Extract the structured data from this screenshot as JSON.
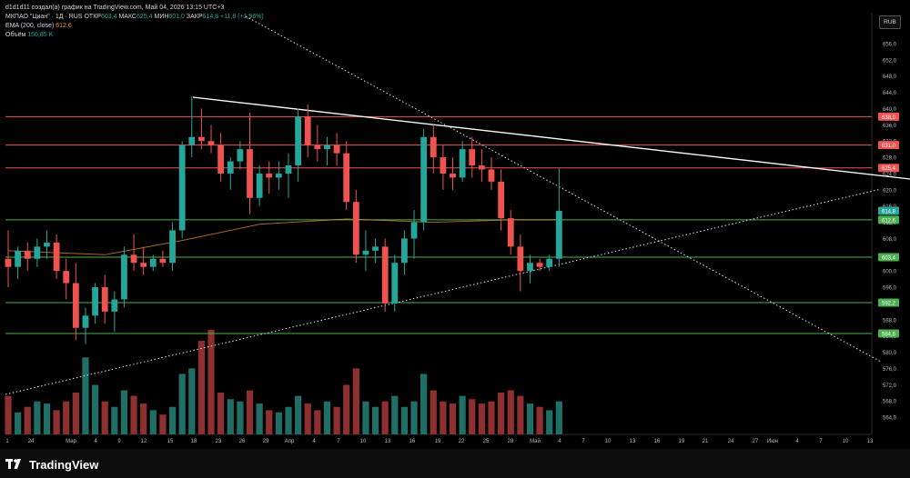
{
  "header": {
    "creator_line": "d1d1d11 создал(а) график на TradingView.com, Май 04, 2026 13:15 UTC+3",
    "ticker": "МКПАО \"Циан\" · 1Д · RUS",
    "open_label": "ОТКР",
    "open_value": "603,4",
    "high_label": "МАКС",
    "high_value": "625,4",
    "low_label": "МИН",
    "low_value": "601,0",
    "close_label": "ЗАКР",
    "close_value": "614,8",
    "change": "+11,8 (+1,96%)",
    "ema_label": "EMA (200, close)",
    "ema_value": "612,6",
    "volume_label": "Объём",
    "volume_value": "156,85 K"
  },
  "currency_button": "RUB",
  "brand": "TradingView",
  "colors": {
    "up": "#26a69a",
    "down": "#ef5350",
    "vol_up": "#1f6f67",
    "vol_down": "#8e2f30",
    "ema": "#f0932b",
    "red_level": "#ef5350",
    "green_level": "#4caf50",
    "trendline": "#ffffff"
  },
  "chart_data": {
    "type": "candlestick",
    "y_axis_ticks": [
      "656,0",
      "652,0",
      "648,0",
      "644,0",
      "640,0",
      "636,0",
      "632,0",
      "628,0",
      "624,0",
      "620,0",
      "616,0",
      "612,0",
      "608,0",
      "604,0",
      "600,0",
      "596,0",
      "592,0",
      "588,0",
      "584,0",
      "580,0",
      "576,0",
      "572,0",
      "568,0",
      "564,0"
    ],
    "x_axis_ticks": [
      "1",
      "24",
      "Мар",
      "4",
      "9",
      "12",
      "15",
      "18",
      "23",
      "26",
      "29",
      "Апр",
      "4",
      "7",
      "10",
      "13",
      "16",
      "19",
      "22",
      "25",
      "28",
      "Май",
      "4",
      "7",
      "10",
      "13",
      "16",
      "19",
      "21",
      "24",
      "27",
      "Июн",
      "4",
      "7",
      "10",
      "13"
    ],
    "price_labels": [
      {
        "text": "638,0",
        "value": 638.0,
        "kind": "red"
      },
      {
        "text": "631,0",
        "value": 631.0,
        "kind": "red"
      },
      {
        "text": "625,4",
        "value": 625.4,
        "kind": "red"
      },
      {
        "text": "614,8",
        "value": 614.8,
        "kind": "up"
      },
      {
        "text": "612,6",
        "value": 612.6,
        "kind": "green"
      },
      {
        "text": "603,4",
        "value": 603.4,
        "kind": "green"
      },
      {
        "text": "592,2",
        "value": 592.2,
        "kind": "green"
      },
      {
        "text": "584,6",
        "value": 584.6,
        "kind": "green"
      }
    ],
    "horizontal_levels": [
      {
        "value": 638.0,
        "kind": "red"
      },
      {
        "value": 631.0,
        "kind": "red"
      },
      {
        "value": 625.4,
        "kind": "red"
      },
      {
        "value": 612.6,
        "kind": "green"
      },
      {
        "value": 603.4,
        "kind": "green"
      },
      {
        "value": 592.2,
        "kind": "green"
      },
      {
        "value": 584.6,
        "kind": "green"
      }
    ],
    "candles": [
      {
        "o": 603,
        "h": 610,
        "l": 596,
        "c": 601
      },
      {
        "o": 601,
        "h": 606,
        "l": 598,
        "c": 605
      },
      {
        "o": 605,
        "h": 607,
        "l": 600,
        "c": 603
      },
      {
        "o": 603,
        "h": 608,
        "l": 601,
        "c": 606
      },
      {
        "o": 606,
        "h": 610,
        "l": 603,
        "c": 607
      },
      {
        "o": 607,
        "h": 609,
        "l": 598,
        "c": 600
      },
      {
        "o": 600,
        "h": 603,
        "l": 593,
        "c": 597
      },
      {
        "o": 597,
        "h": 602,
        "l": 583,
        "c": 586
      },
      {
        "o": 586,
        "h": 591,
        "l": 582,
        "c": 589
      },
      {
        "o": 589,
        "h": 597,
        "l": 587,
        "c": 596
      },
      {
        "o": 596,
        "h": 599,
        "l": 587,
        "c": 590
      },
      {
        "o": 590,
        "h": 595,
        "l": 585,
        "c": 593
      },
      {
        "o": 593,
        "h": 606,
        "l": 591,
        "c": 604
      },
      {
        "o": 604,
        "h": 609,
        "l": 600,
        "c": 602
      },
      {
        "o": 602,
        "h": 606,
        "l": 599,
        "c": 601
      },
      {
        "o": 601,
        "h": 604,
        "l": 600,
        "c": 603
      },
      {
        "o": 603,
        "h": 605,
        "l": 601,
        "c": 602
      },
      {
        "o": 602,
        "h": 612,
        "l": 600,
        "c": 610
      },
      {
        "o": 610,
        "h": 632,
        "l": 608,
        "c": 631
      },
      {
        "o": 631,
        "h": 643,
        "l": 628,
        "c": 633
      },
      {
        "o": 633,
        "h": 640,
        "l": 630,
        "c": 632
      },
      {
        "o": 632,
        "h": 636,
        "l": 629,
        "c": 631
      },
      {
        "o": 631,
        "h": 634,
        "l": 622,
        "c": 624
      },
      {
        "o": 624,
        "h": 628,
        "l": 620,
        "c": 627
      },
      {
        "o": 627,
        "h": 632,
        "l": 625,
        "c": 630
      },
      {
        "o": 630,
        "h": 639,
        "l": 614,
        "c": 618
      },
      {
        "o": 618,
        "h": 626,
        "l": 616,
        "c": 624
      },
      {
        "o": 624,
        "h": 627,
        "l": 619,
        "c": 623
      },
      {
        "o": 623,
        "h": 627,
        "l": 620,
        "c": 624
      },
      {
        "o": 624,
        "h": 629,
        "l": 618,
        "c": 626
      },
      {
        "o": 626,
        "h": 640,
        "l": 622,
        "c": 638
      },
      {
        "o": 638,
        "h": 641,
        "l": 628,
        "c": 631
      },
      {
        "o": 631,
        "h": 636,
        "l": 627,
        "c": 630
      },
      {
        "o": 630,
        "h": 633,
        "l": 626,
        "c": 631
      },
      {
        "o": 631,
        "h": 634,
        "l": 626,
        "c": 629
      },
      {
        "o": 629,
        "h": 632,
        "l": 615,
        "c": 617
      },
      {
        "o": 617,
        "h": 620,
        "l": 602,
        "c": 604
      },
      {
        "o": 604,
        "h": 610,
        "l": 600,
        "c": 605
      },
      {
        "o": 605,
        "h": 608,
        "l": 602,
        "c": 606
      },
      {
        "o": 606,
        "h": 608,
        "l": 590,
        "c": 592
      },
      {
        "o": 592,
        "h": 604,
        "l": 590,
        "c": 602
      },
      {
        "o": 602,
        "h": 610,
        "l": 599,
        "c": 608
      },
      {
        "o": 608,
        "h": 615,
        "l": 603,
        "c": 612
      },
      {
        "o": 612,
        "h": 635,
        "l": 610,
        "c": 633
      },
      {
        "o": 633,
        "h": 636,
        "l": 624,
        "c": 628
      },
      {
        "o": 628,
        "h": 631,
        "l": 620,
        "c": 624
      },
      {
        "o": 624,
        "h": 628,
        "l": 620,
        "c": 623
      },
      {
        "o": 623,
        "h": 632,
        "l": 622,
        "c": 630
      },
      {
        "o": 630,
        "h": 633,
        "l": 623,
        "c": 626
      },
      {
        "o": 626,
        "h": 630,
        "l": 622,
        "c": 625
      },
      {
        "o": 625,
        "h": 628,
        "l": 620,
        "c": 622
      },
      {
        "o": 622,
        "h": 625,
        "l": 610,
        "c": 613
      },
      {
        "o": 613,
        "h": 615,
        "l": 604,
        "c": 606
      },
      {
        "o": 606,
        "h": 609,
        "l": 595,
        "c": 600
      },
      {
        "o": 600,
        "h": 604,
        "l": 597,
        "c": 602
      },
      {
        "o": 602,
        "h": 603,
        "l": 600,
        "c": 601
      },
      {
        "o": 601,
        "h": 604,
        "l": 600,
        "c": 603
      },
      {
        "o": 603,
        "h": 625.4,
        "l": 601,
        "c": 614.8
      }
    ],
    "volumes": [
      35,
      20,
      25,
      30,
      28,
      22,
      30,
      38,
      70,
      45,
      30,
      25,
      40,
      35,
      28,
      22,
      18,
      25,
      55,
      60,
      85,
      95,
      38,
      32,
      30,
      40,
      28,
      22,
      20,
      25,
      35,
      28,
      22,
      30,
      25,
      45,
      60,
      30,
      25,
      30,
      35,
      25,
      30,
      55,
      40,
      30,
      28,
      35,
      32,
      28,
      30,
      38,
      40,
      35,
      28,
      25,
      22,
      30
    ],
    "ema": [
      {
        "i": 0,
        "v": 605.0
      },
      {
        "i": 10,
        "v": 604.0
      },
      {
        "i": 18,
        "v": 607.5
      },
      {
        "i": 26,
        "v": 611.5
      },
      {
        "i": 35,
        "v": 612.8
      },
      {
        "i": 44,
        "v": 612.0
      },
      {
        "i": 52,
        "v": 612.6
      },
      {
        "i": 57,
        "v": 612.6
      }
    ]
  }
}
